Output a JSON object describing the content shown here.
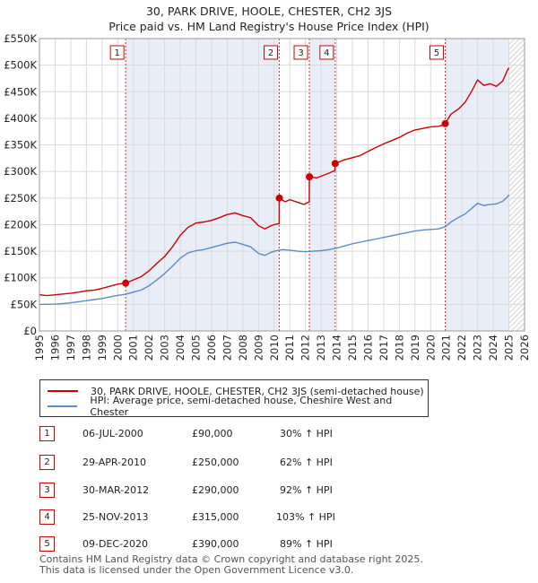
{
  "chart_data": {
    "type": "line",
    "title": "30, PARK DRIVE, HOOLE, CHESTER, CH2 3JS",
    "subtitle": "Price paid vs. HM Land Registry's House Price Index (HPI)",
    "xlim": [
      1995,
      2026
    ],
    "ylim": [
      0,
      550000
    ],
    "x_ticks": [
      "1995",
      "1996",
      "1997",
      "1998",
      "1999",
      "2000",
      "2001",
      "2002",
      "2003",
      "2004",
      "2005",
      "2006",
      "2007",
      "2008",
      "2009",
      "2010",
      "2011",
      "2012",
      "2013",
      "2014",
      "2015",
      "2016",
      "2017",
      "2018",
      "2019",
      "2020",
      "2021",
      "2022",
      "2023",
      "2024",
      "2025",
      "2026"
    ],
    "y_ticks": [
      {
        "value": 0,
        "label": "£0"
      },
      {
        "value": 50000,
        "label": "£50K"
      },
      {
        "value": 100000,
        "label": "£100K"
      },
      {
        "value": 150000,
        "label": "£150K"
      },
      {
        "value": 200000,
        "label": "£200K"
      },
      {
        "value": 250000,
        "label": "£250K"
      },
      {
        "value": 300000,
        "label": "£300K"
      },
      {
        "value": 350000,
        "label": "£350K"
      },
      {
        "value": 400000,
        "label": "£400K"
      },
      {
        "value": 450000,
        "label": "£450K"
      },
      {
        "value": 500000,
        "label": "£500K"
      },
      {
        "value": 550000,
        "label": "£550K"
      }
    ],
    "series": [
      {
        "name": "30, PARK DRIVE, HOOLE, CHESTER, CH2 3JS (semi-detached house)",
        "color": "#cc0000",
        "points": [
          [
            1995.0,
            68000
          ],
          [
            1995.5,
            66500
          ],
          [
            1996.0,
            68000
          ],
          [
            1996.5,
            69500
          ],
          [
            1997.0,
            71000
          ],
          [
            1997.5,
            73000
          ],
          [
            1998.0,
            75500
          ],
          [
            1998.5,
            77000
          ],
          [
            1999.0,
            80000
          ],
          [
            1999.5,
            84000
          ],
          [
            2000.0,
            88000
          ],
          [
            2000.51,
            90000
          ],
          [
            2001.0,
            96000
          ],
          [
            2001.5,
            102000
          ],
          [
            2002.0,
            113000
          ],
          [
            2002.5,
            127000
          ],
          [
            2003.0,
            140000
          ],
          [
            2003.5,
            158000
          ],
          [
            2004.0,
            180000
          ],
          [
            2004.5,
            195000
          ],
          [
            2005.0,
            203000
          ],
          [
            2005.5,
            205000
          ],
          [
            2006.0,
            208000
          ],
          [
            2006.5,
            213000
          ],
          [
            2007.0,
            219000
          ],
          [
            2007.5,
            222000
          ],
          [
            2008.0,
            217000
          ],
          [
            2008.5,
            213000
          ],
          [
            2009.0,
            198000
          ],
          [
            2009.4,
            192000
          ],
          [
            2009.8,
            198000
          ],
          [
            2010.0,
            200000
          ],
          [
            2010.32,
            202000
          ],
          [
            2010.33,
            250000
          ],
          [
            2010.7,
            243000
          ],
          [
            2011.0,
            247000
          ],
          [
            2011.5,
            242000
          ],
          [
            2011.9,
            238000
          ],
          [
            2012.24,
            243000
          ],
          [
            2012.25,
            290000
          ],
          [
            2012.7,
            288000
          ],
          [
            2013.0,
            291000
          ],
          [
            2013.5,
            297000
          ],
          [
            2013.89,
            302000
          ],
          [
            2013.9,
            315000
          ],
          [
            2014.5,
            322000
          ],
          [
            2015.0,
            326000
          ],
          [
            2015.5,
            330000
          ],
          [
            2016.0,
            338000
          ],
          [
            2016.5,
            345000
          ],
          [
            2017.0,
            352000
          ],
          [
            2017.5,
            358000
          ],
          [
            2018.0,
            364000
          ],
          [
            2018.5,
            372000
          ],
          [
            2019.0,
            378000
          ],
          [
            2019.5,
            381000
          ],
          [
            2020.0,
            384000
          ],
          [
            2020.5,
            385000
          ],
          [
            2020.9,
            388000
          ],
          [
            2020.93,
            390000
          ],
          [
            2021.3,
            408000
          ],
          [
            2021.8,
            418000
          ],
          [
            2022.2,
            430000
          ],
          [
            2022.6,
            450000
          ],
          [
            2023.0,
            472000
          ],
          [
            2023.4,
            462000
          ],
          [
            2023.8,
            465000
          ],
          [
            2024.2,
            460000
          ],
          [
            2024.6,
            470000
          ],
          [
            2024.9,
            490000
          ],
          [
            2025.0,
            495000
          ]
        ]
      },
      {
        "name": "HPI: Average price, semi-detached house, Cheshire West and Chester",
        "color": "#5b8bc5",
        "points": [
          [
            1995.0,
            50000
          ],
          [
            1995.5,
            50200
          ],
          [
            1996.0,
            50500
          ],
          [
            1996.5,
            51500
          ],
          [
            1997.0,
            53000
          ],
          [
            1997.5,
            55000
          ],
          [
            1998.0,
            57000
          ],
          [
            1998.5,
            59000
          ],
          [
            1999.0,
            61000
          ],
          [
            1999.5,
            64000
          ],
          [
            2000.0,
            67000
          ],
          [
            2000.51,
            69000
          ],
          [
            2001.0,
            73000
          ],
          [
            2001.5,
            77000
          ],
          [
            2002.0,
            85000
          ],
          [
            2002.5,
            96000
          ],
          [
            2003.0,
            108000
          ],
          [
            2003.5,
            122000
          ],
          [
            2004.0,
            137000
          ],
          [
            2004.5,
            147000
          ],
          [
            2005.0,
            151000
          ],
          [
            2005.5,
            153000
          ],
          [
            2006.0,
            157000
          ],
          [
            2006.5,
            161000
          ],
          [
            2007.0,
            165000
          ],
          [
            2007.5,
            167000
          ],
          [
            2008.0,
            163000
          ],
          [
            2008.5,
            158000
          ],
          [
            2009.0,
            146000
          ],
          [
            2009.4,
            142000
          ],
          [
            2009.8,
            148000
          ],
          [
            2010.0,
            150000
          ],
          [
            2010.5,
            153000
          ],
          [
            2011.0,
            152000
          ],
          [
            2011.5,
            150000
          ],
          [
            2012.0,
            149000
          ],
          [
            2012.5,
            150000
          ],
          [
            2013.0,
            151000
          ],
          [
            2013.5,
            153000
          ],
          [
            2014.0,
            156000
          ],
          [
            2014.5,
            160000
          ],
          [
            2015.0,
            164000
          ],
          [
            2015.5,
            167000
          ],
          [
            2016.0,
            170000
          ],
          [
            2016.5,
            173000
          ],
          [
            2017.0,
            176000
          ],
          [
            2017.5,
            179000
          ],
          [
            2018.0,
            182000
          ],
          [
            2018.5,
            185000
          ],
          [
            2019.0,
            188000
          ],
          [
            2019.5,
            190000
          ],
          [
            2020.0,
            191000
          ],
          [
            2020.5,
            192000
          ],
          [
            2020.93,
            196000
          ],
          [
            2021.3,
            205000
          ],
          [
            2021.8,
            214000
          ],
          [
            2022.2,
            220000
          ],
          [
            2022.6,
            230000
          ],
          [
            2023.0,
            240000
          ],
          [
            2023.4,
            236000
          ],
          [
            2023.8,
            238000
          ],
          [
            2024.2,
            239000
          ],
          [
            2024.6,
            244000
          ],
          [
            2024.9,
            252000
          ],
          [
            2025.0,
            256000
          ]
        ]
      }
    ],
    "sales": [
      {
        "num": "1",
        "x": 2000.51,
        "y": 90000,
        "date": "06-JUL-2000",
        "price": "£90,000",
        "change": "30% ↑ HPI"
      },
      {
        "num": "2",
        "x": 2010.33,
        "y": 250000,
        "date": "29-APR-2010",
        "price": "£250,000",
        "change": "62% ↑ HPI"
      },
      {
        "num": "3",
        "x": 2012.25,
        "y": 290000,
        "date": "30-MAR-2012",
        "price": "£290,000",
        "change": "92% ↑ HPI"
      },
      {
        "num": "4",
        "x": 2013.9,
        "y": 315000,
        "date": "25-NOV-2013",
        "price": "£315,000",
        "change": "103% ↑ HPI"
      },
      {
        "num": "5",
        "x": 2020.93,
        "y": 390000,
        "date": "09-DEC-2020",
        "price": "£390,000",
        "change": "89% ↑ HPI"
      }
    ],
    "shaded_periods": [
      [
        2000.51,
        2010.33
      ],
      [
        2012.25,
        2013.9
      ],
      [
        2020.93,
        2026
      ]
    ],
    "hatched_region": [
      2025.0,
      2026
    ]
  },
  "legend": {
    "series1": "30, PARK DRIVE, HOOLE, CHESTER, CH2 3JS (semi-detached house)",
    "series2": "HPI: Average price, semi-detached house, Cheshire West and Chester"
  },
  "footer": {
    "line1": "Contains HM Land Registry data © Crown copyright and database right 2025.",
    "line2": "This data is licensed under the Open Government Licence v3.0."
  },
  "colors": {
    "price_line": "#cc0000",
    "hpi_line": "#5b8bc5",
    "shade": "#e8edf8"
  }
}
